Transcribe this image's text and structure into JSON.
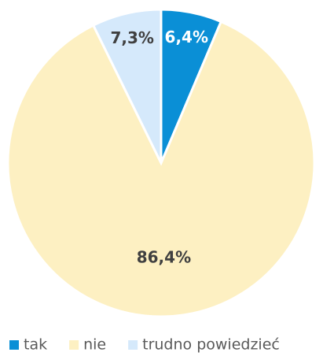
{
  "chart_data": {
    "type": "pie",
    "categories": [
      "tak",
      "nie",
      "trudno powiedzieć"
    ],
    "values": [
      6.4,
      86.4,
      7.3
    ],
    "value_labels": [
      "6,4%",
      "86,4%",
      "7,3%"
    ],
    "colors": [
      "#0a8fd6",
      "#fdf0c2",
      "#d5e9fb"
    ],
    "label_colors": [
      "#ffffff",
      "#404040",
      "#404040"
    ],
    "legend": "bottom"
  }
}
